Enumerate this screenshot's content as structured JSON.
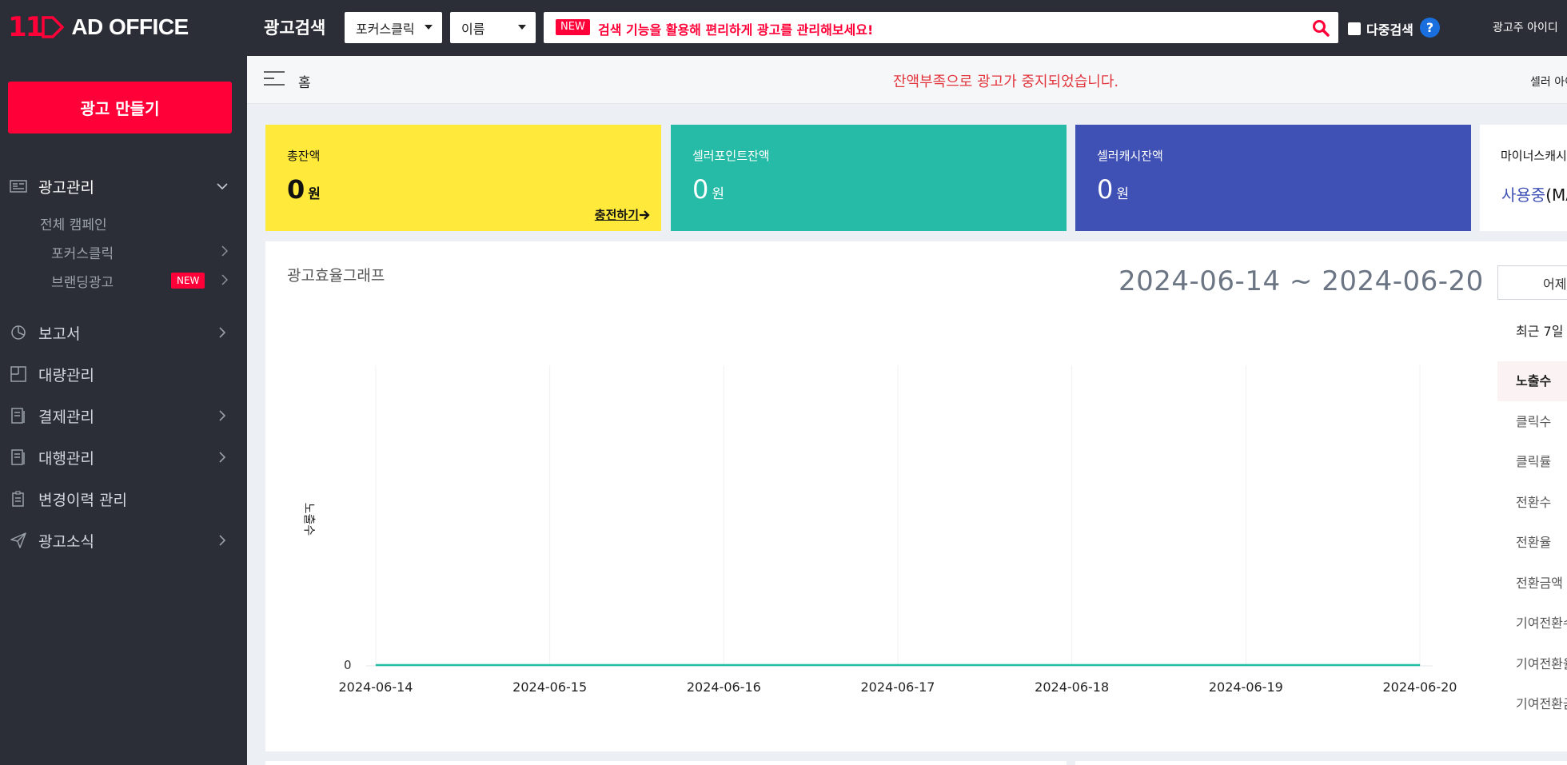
{
  "topbar": {
    "logo_mark": "11",
    "logo_text": "AD OFFICE",
    "title": "광고검색",
    "select_type": "포커스클릭",
    "select_field": "이름",
    "new_badge": "NEW",
    "search_placeholder": "검색 기능을 활용해 편리하게 광고를 관리해보세요!",
    "multi_search_label": "다중검색",
    "help_label": "?",
    "advertiser_id": "광고주 아이디"
  },
  "sidebar": {
    "create_button": "광고 만들기",
    "items": [
      {
        "label": "광고관리",
        "icon": "ad-manage-icon",
        "expanded": true
      },
      {
        "label": "보고서",
        "icon": "pie-chart-icon"
      },
      {
        "label": "대량관리",
        "icon": "bulk-icon"
      },
      {
        "label": "결제관리",
        "icon": "receipt-icon"
      },
      {
        "label": "대행관리",
        "icon": "agency-icon"
      },
      {
        "label": "변경이력 관리",
        "icon": "history-icon"
      },
      {
        "label": "광고소식",
        "icon": "send-icon"
      }
    ],
    "sub_items": [
      {
        "label": "전체 캠페인"
      },
      {
        "label": "포커스클릭"
      },
      {
        "label": "브랜딩광고",
        "badge": "NEW"
      }
    ]
  },
  "crumbbar": {
    "home": "홈",
    "alert": "잔액부족으로 광고가 중지되었습니다.",
    "seller_id": "셀러 아이디"
  },
  "cards": {
    "total": {
      "title": "총잔액",
      "amount": "0",
      "unit": "원",
      "link": "충전하기"
    },
    "point": {
      "title": "셀러포인트잔액",
      "amount": "0",
      "unit": "원"
    },
    "cash": {
      "title": "셀러캐시잔액",
      "amount": "0",
      "unit": "원"
    },
    "minus": {
      "title": "마이너스캐시",
      "status": "사용중",
      "status_suffix": "(MA"
    }
  },
  "graph": {
    "title": "광고효율그래프",
    "range": "2024-06-14 ~ 2024-06-20",
    "yesterday_button": "어제",
    "recent7": "최근 7일 ∨",
    "metrics": [
      "노출수",
      "클릭수",
      "클릭률",
      "전환수",
      "전환율",
      "전환금액",
      "기여전환수",
      "기여전환율",
      "기여전환금"
    ]
  },
  "chart_data": {
    "type": "line",
    "title": "",
    "xlabel": "",
    "ylabel": "노출수",
    "x": [
      "2024-06-14",
      "2024-06-15",
      "2024-06-16",
      "2024-06-17",
      "2024-06-18",
      "2024-06-19",
      "2024-06-20"
    ],
    "series": [
      {
        "name": "노출수",
        "values": [
          0,
          0,
          0,
          0,
          0,
          0,
          0
        ]
      }
    ],
    "y_ticks": [
      "0"
    ],
    "grid": true,
    "line_color": "#25bba6"
  },
  "colors": {
    "brand": "#ff0038",
    "sidebar_bg": "#2b2e36",
    "card_total": "#ffea3b",
    "card_point": "#25bba6",
    "card_cash": "#3f51b5",
    "alert": "#e2363d"
  }
}
